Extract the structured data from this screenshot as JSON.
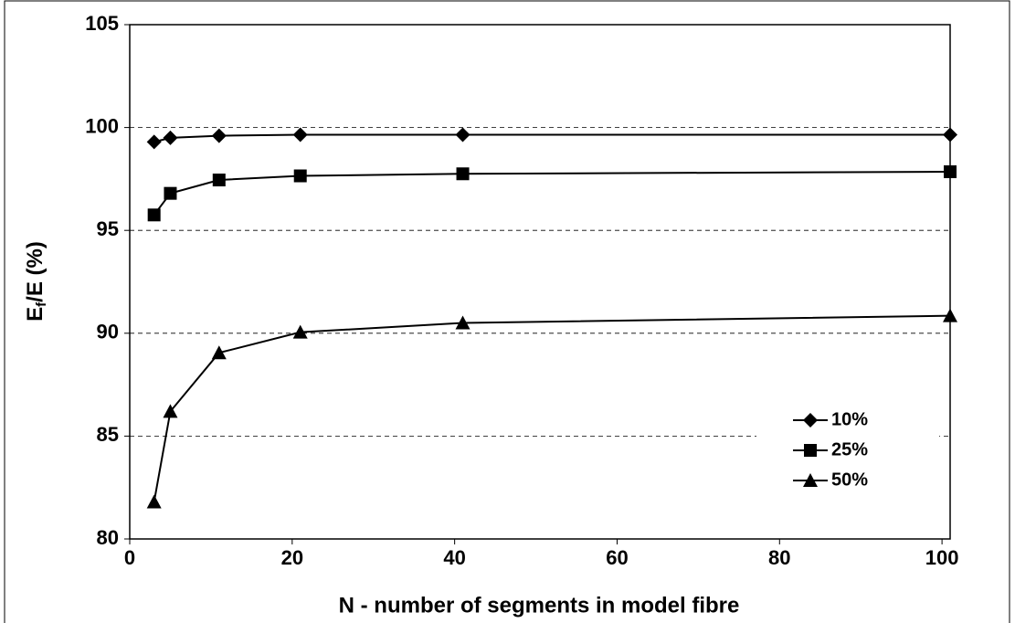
{
  "chart_data": {
    "type": "line",
    "xlabel": "N - number of segments in model fibre",
    "ylabel": [
      "E",
      "f",
      "/E (%)"
    ],
    "x": [
      3,
      5,
      11,
      21,
      41,
      101
    ],
    "series": [
      {
        "name": "10%",
        "color": "#000000",
        "marker": "diamond",
        "values": [
          99.3,
          99.5,
          99.6,
          99.65,
          99.65,
          99.65
        ]
      },
      {
        "name": "25%",
        "color": "#000000",
        "marker": "square",
        "values": [
          95.75,
          96.8,
          97.45,
          97.65,
          97.75,
          97.85
        ]
      },
      {
        "name": "50%",
        "color": "#000000",
        "marker": "triangle",
        "values": [
          81.8,
          86.2,
          89.05,
          90.05,
          90.5,
          90.85
        ]
      }
    ],
    "xlim": [
      0,
      101
    ],
    "ylim": [
      80,
      105
    ],
    "xticks": [
      0,
      20,
      40,
      60,
      80,
      100
    ],
    "yticks": [
      80,
      85,
      90,
      95,
      100,
      105
    ],
    "grid": true,
    "legend": "lower right"
  }
}
